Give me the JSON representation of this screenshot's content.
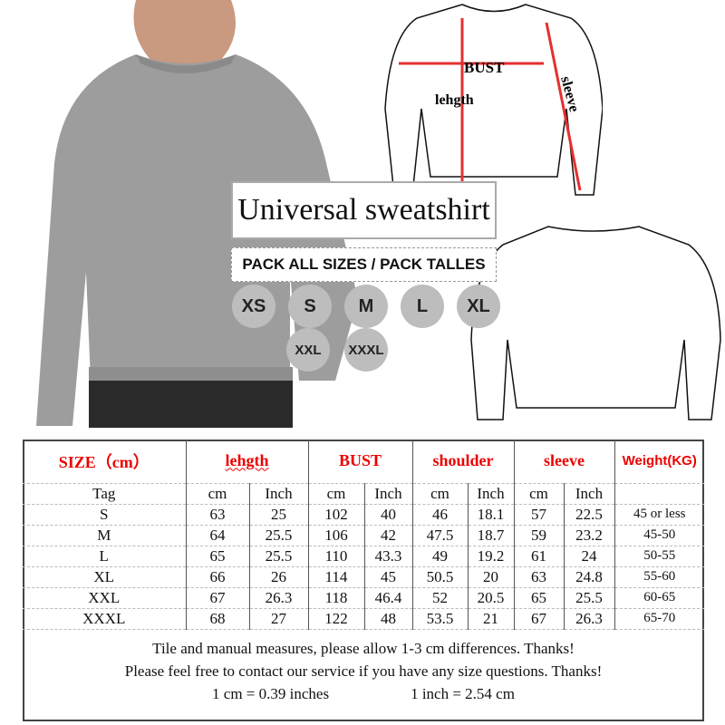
{
  "product": {
    "title": "Universal sweatshirt",
    "pack_label": "PACK ALL SIZES / PACK TALLES",
    "sizes": [
      "XS",
      "S",
      "M",
      "L",
      "XL",
      "XXL",
      "XXXL"
    ]
  },
  "diagram": {
    "bust_label": "BUST",
    "length_label": "lehgth",
    "sleeve_label": "sleeve",
    "accent_color": "#e53030"
  },
  "size_table": {
    "headers": [
      "SIZE（cm）",
      "lehgth",
      "BUST",
      "shoulder",
      "sleeve",
      "Weight(KG)"
    ],
    "subheaders": [
      "Tag",
      "cm",
      "Inch",
      "cm",
      "Inch",
      "cm",
      "Inch",
      "cm",
      "Inch",
      ""
    ],
    "rows": [
      [
        "S",
        "63",
        "25",
        "102",
        "40",
        "46",
        "18.1",
        "57",
        "22.5",
        "45 or less"
      ],
      [
        "M",
        "64",
        "25.5",
        "106",
        "42",
        "47.5",
        "18.7",
        "59",
        "23.2",
        "45-50"
      ],
      [
        "L",
        "65",
        "25.5",
        "110",
        "43.3",
        "49",
        "19.2",
        "61",
        "24",
        "50-55"
      ],
      [
        "XL",
        "66",
        "26",
        "114",
        "45",
        "50.5",
        "20",
        "63",
        "24.8",
        "55-60"
      ],
      [
        "XXL",
        "67",
        "26.3",
        "118",
        "46.4",
        "52",
        "20.5",
        "65",
        "25.5",
        "60-65"
      ],
      [
        "XXXL",
        "68",
        "27",
        "122",
        "48",
        "53.5",
        "21",
        "67",
        "26.3",
        "65-70"
      ]
    ],
    "header_color": "#e00000"
  },
  "footer": {
    "note1": "Tile and manual measures, please allow 1-3 cm differences. Thanks!",
    "note2": "Please feel free to contact our service if you have any size questions. Thanks!",
    "conv_cm": "1 cm = 0.39 inches",
    "conv_inch": "1 inch = 2.54 cm"
  }
}
